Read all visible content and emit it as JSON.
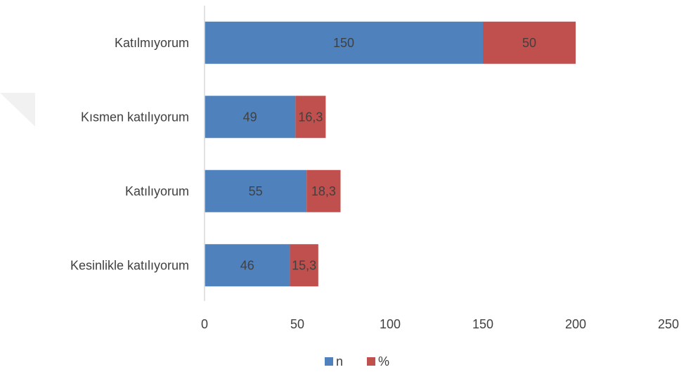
{
  "chart_data": {
    "type": "bar",
    "orientation": "horizontal",
    "stacked": true,
    "categories": [
      "Katılmıyorum",
      "Kısmen katılıyorum",
      "Katılıyorum",
      "Kesinlikle katılıyorum"
    ],
    "series": [
      {
        "name": "n",
        "values": [
          150,
          49,
          55,
          46
        ],
        "labels": [
          "150",
          "49",
          "55",
          "46"
        ],
        "color": "#4f81bd"
      },
      {
        "name": "%",
        "values": [
          50,
          16.3,
          18.3,
          15.3
        ],
        "labels": [
          "50",
          "16,3",
          "18,3",
          "15,3"
        ],
        "color": "#c0504d"
      }
    ],
    "xlim": [
      0,
      250
    ],
    "xticks": [
      0,
      50,
      100,
      150,
      200,
      250
    ],
    "xtick_labels": [
      "0",
      "50",
      "100",
      "150",
      "200",
      "250"
    ],
    "grid": false,
    "legend_position": "bottom"
  }
}
